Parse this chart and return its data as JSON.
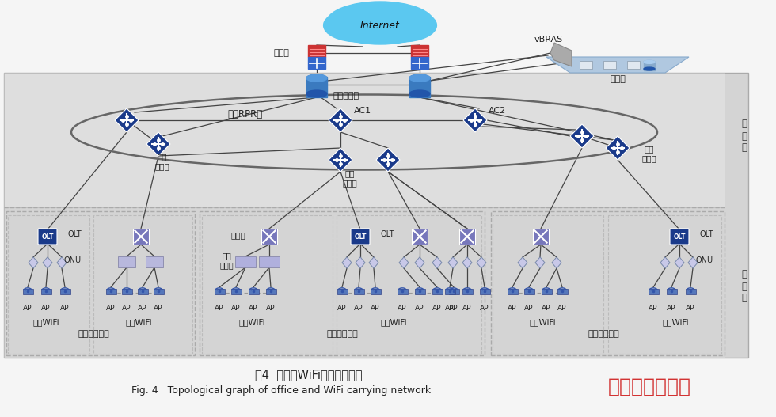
{
  "bg_color": "#f5f5f5",
  "main_bg": "#d8d8d8",
  "agg_bg": "#e2e2e2",
  "title_cn": "图4  办公、WiFi承载网拓扑图",
  "title_en": "Fig. 4   Topological graph of office and WiFi carrying network",
  "watermark": "兴顺综合新闻网",
  "cloud_color": "#5bc8f0",
  "cloud_text": "Internet",
  "firewall_red": "#cc3333",
  "firewall_blue": "#3366cc",
  "router_color": "#3a7abf",
  "switch_color": "#1a3a8a",
  "x_switch_color": "#9999cc",
  "ap_color": "#4466aa",
  "onu_color": "#ccccee",
  "olt_color": "#1a3a8a",
  "line_color": "#444444",
  "dash_color": "#999999",
  "layer_hui": "汇\n聚\n层",
  "layer_jie": "接\n入\n层",
  "lbl_firewall": "防火墙",
  "lbl_core_router": "核心路由器",
  "lbl_rpr": "汇聚RPR环",
  "lbl_ac1": "AC1",
  "lbl_ac2": "AC2",
  "lbl_hui_sw": "汇聚\n交换机",
  "lbl_vbras": "vBRAS",
  "lbl_private_cloud": "私有云",
  "lbl_olt": "OLT",
  "lbl_onu": "ONU",
  "lbl_switch": "交换机",
  "lbl_access_switch": "接入\n交换机",
  "lbl_ap": "AP",
  "lbl_outdoor_wifi": "室外WiFi",
  "lbl_indoor_wifi": "室内WiFi",
  "lbl_zone1": "锦城绿道西段",
  "lbl_zone2": "锦城绿道南段",
  "lbl_zone3": "锦城绿道东段"
}
